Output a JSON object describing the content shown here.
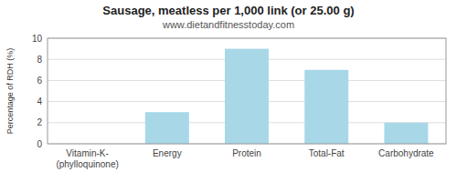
{
  "chart_data": {
    "type": "bar",
    "title": "Sausage, meatless per 1,000 link (or 25.00 g)",
    "subtitle": "www.dietandfitnesstoday.com",
    "categories": [
      "Vitamin-K-(phylloquinone)",
      "Energy",
      "Protein",
      "Total-Fat",
      "Carbohydrate"
    ],
    "values": [
      0,
      3,
      9,
      7,
      2
    ],
    "color": "#a8d8e8",
    "ylabel": "Percentage of RDH (%)",
    "ylim": [
      0,
      10
    ],
    "yticks": [
      0,
      2,
      4,
      6,
      8,
      10
    ],
    "grid": true
  }
}
